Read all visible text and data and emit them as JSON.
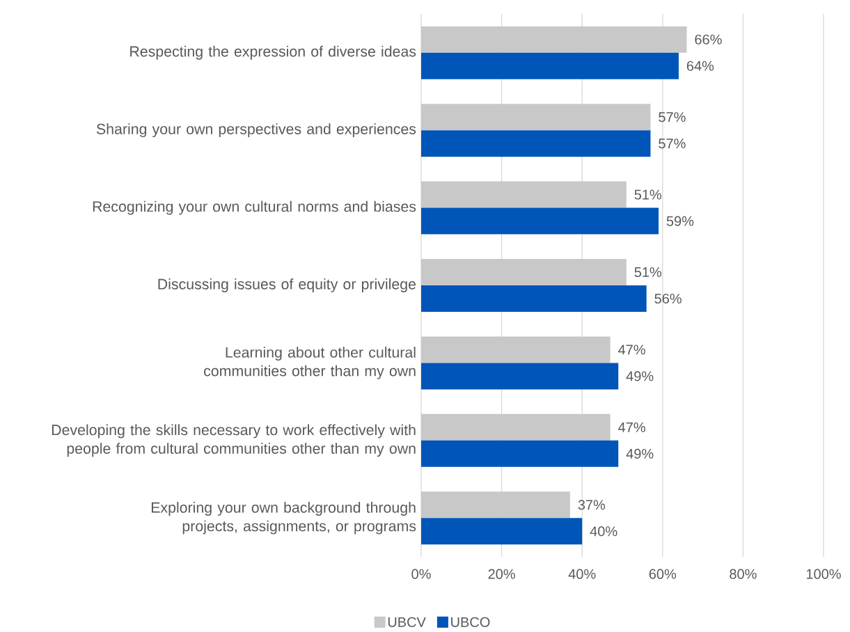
{
  "chart_data": {
    "type": "bar",
    "orientation": "horizontal",
    "categories": [
      "Respecting the expression of diverse ideas",
      "Sharing your own perspectives and experiences",
      "Recognizing your own cultural norms and biases",
      "Discussing issues of equity or privilege",
      "Learning about other cultural communities other than my own",
      "Developing the skills necessary to work effectively with people from cultural communities other than my own",
      "Exploring your own background through projects, assignments, or programs"
    ],
    "series": [
      {
        "name": "UBCV",
        "color": "#c8c8c8",
        "values": [
          66,
          57,
          51,
          51,
          47,
          47,
          37
        ],
        "value_labels": [
          "66%",
          "57%",
          "51%",
          "51%",
          "47%",
          "47%",
          "37%"
        ]
      },
      {
        "name": "UBCO",
        "color": "#0055b8",
        "values": [
          64,
          57,
          59,
          56,
          49,
          49,
          40
        ],
        "value_labels": [
          "64%",
          "57%",
          "59%",
          "56%",
          "49%",
          "49%",
          "40%"
        ]
      }
    ],
    "xlim": [
      0,
      100
    ],
    "xticks": [
      {
        "value": 0,
        "label": "0%"
      },
      {
        "value": 20,
        "label": "20%"
      },
      {
        "value": 40,
        "label": "40%"
      },
      {
        "value": 60,
        "label": "60%"
      },
      {
        "value": 80,
        "label": "80%"
      },
      {
        "value": 100,
        "label": "100%"
      }
    ],
    "grid": "x",
    "legend": "bottom"
  }
}
